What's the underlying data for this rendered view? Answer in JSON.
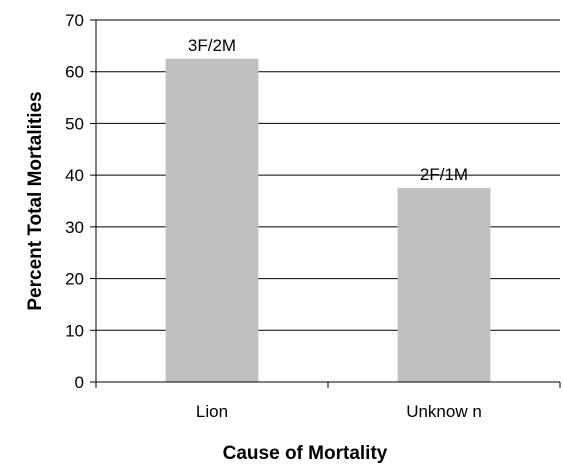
{
  "chart_data": {
    "type": "bar",
    "title": "",
    "xlabel": "Cause of Mortality",
    "ylabel": "Percent Total Mortalities",
    "categories": [
      "Lion",
      "Unknow n"
    ],
    "values": [
      62.5,
      37.5
    ],
    "data_labels": [
      "3F/2M",
      "2F/1M"
    ],
    "ylim": [
      0,
      70
    ],
    "yticks": [
      0,
      10,
      20,
      30,
      40,
      50,
      60,
      70
    ],
    "grid": true,
    "legend": "none",
    "bar_color": "#c0c0c0",
    "grid_color": "#000000"
  }
}
